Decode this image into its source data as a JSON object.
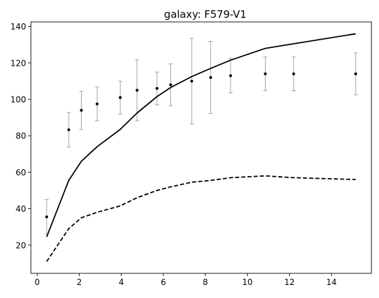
{
  "chart_data": {
    "type": "scatter",
    "title": "galaxy: F579-V1",
    "xlabel": "",
    "ylabel": "",
    "xlim": [
      -0.3,
      15.9
    ],
    "ylim": [
      4.5,
      142.5
    ],
    "grid": false,
    "x_ticks": [
      0,
      2,
      4,
      6,
      8,
      10,
      12,
      14
    ],
    "y_ticks": [
      20,
      40,
      60,
      80,
      100,
      120,
      140
    ],
    "series": [
      {
        "kind": "errorbar",
        "color": "#000000",
        "errorbar_color": "#999999",
        "x": [
          0.45,
          1.5,
          2.1,
          2.85,
          3.95,
          4.75,
          5.7,
          6.35,
          7.35,
          8.25,
          9.2,
          10.85,
          12.2,
          15.15
        ],
        "y": [
          35.5,
          83.3,
          94.0,
          97.5,
          101.0,
          105.0,
          106.0,
          108.0,
          110.0,
          112.0,
          113.0,
          114.0,
          114.0,
          114.0
        ],
        "err": [
          9.5,
          9.5,
          10.5,
          9.3,
          9.0,
          16.8,
          9.0,
          11.5,
          23.5,
          19.8,
          9.5,
          9.3,
          9.3,
          11.5
        ]
      },
      {
        "kind": "line",
        "style": "solid",
        "color": "#000000",
        "x": [
          0.45,
          1.5,
          2.1,
          2.85,
          3.95,
          4.75,
          5.7,
          6.35,
          7.35,
          8.25,
          9.2,
          10.85,
          12.2,
          15.15
        ],
        "y": [
          24.5,
          55.5,
          66.0,
          74.0,
          83.5,
          92.5,
          101.5,
          106.5,
          112.5,
          117.0,
          121.5,
          128.0,
          130.5,
          136.0
        ]
      },
      {
        "kind": "line",
        "style": "dashed",
        "color": "#000000",
        "x": [
          0.45,
          1.5,
          2.1,
          2.85,
          3.95,
          4.75,
          5.7,
          6.35,
          7.35,
          8.25,
          9.2,
          10.85,
          12.2,
          15.15
        ],
        "y": [
          11.0,
          29.0,
          35.0,
          38.0,
          41.5,
          46.0,
          50.0,
          52.0,
          54.5,
          55.5,
          57.0,
          58.0,
          57.0,
          56.0
        ]
      }
    ]
  }
}
